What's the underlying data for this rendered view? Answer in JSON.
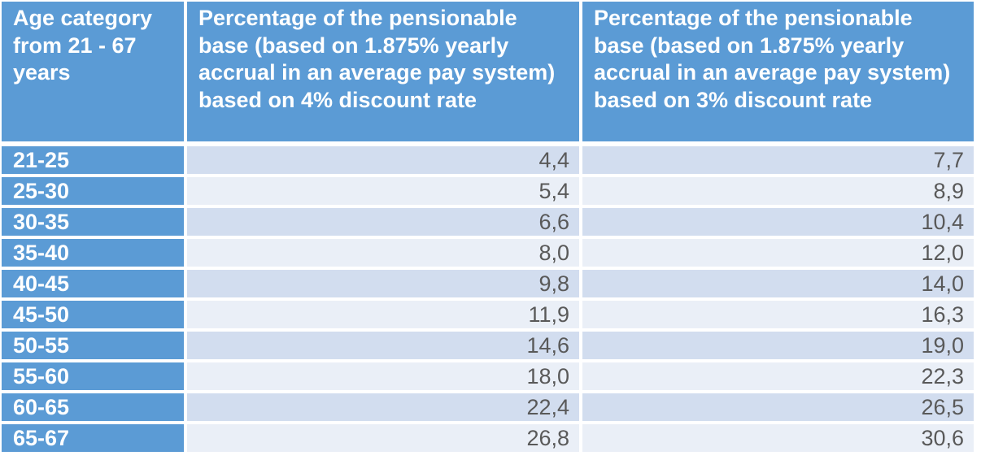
{
  "table": {
    "headers": [
      "Age category from 21 - 67 years",
      "Percentage of the pensionable base (based on 1.875% yearly accrual in an average pay system) based on 4% discount rate",
      "Percentage of the pensionable base (based on 1.875% yearly accrual in an average pay system) based on 3% discount rate"
    ],
    "rows": [
      {
        "age": "21-25",
        "rate4": "4,4",
        "rate3": "7,7"
      },
      {
        "age": "25-30",
        "rate4": "5,4",
        "rate3": "8,9"
      },
      {
        "age": "30-35",
        "rate4": "6,6",
        "rate3": "10,4"
      },
      {
        "age": "35-40",
        "rate4": "8,0",
        "rate3": "12,0"
      },
      {
        "age": "40-45",
        "rate4": "9,8",
        "rate3": "14,0"
      },
      {
        "age": "45-50",
        "rate4": "11,9",
        "rate3": "16,3"
      },
      {
        "age": "50-55",
        "rate4": "14,6",
        "rate3": "19,0"
      },
      {
        "age": "55-60",
        "rate4": "18,0",
        "rate3": "22,3"
      },
      {
        "age": "60-65",
        "rate4": "22,4",
        "rate3": "26,5"
      },
      {
        "age": "65-67",
        "rate4": "26,8",
        "rate3": "30,6"
      }
    ]
  },
  "colors": {
    "header_bg": "#5b9bd5",
    "row_dark": "#d2ddef",
    "row_light": "#eaeff7",
    "value_text": "#595959"
  }
}
